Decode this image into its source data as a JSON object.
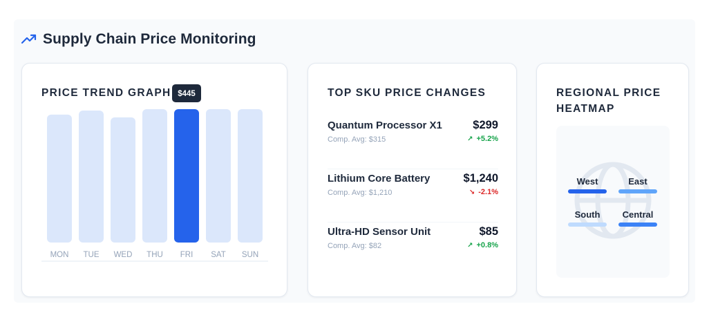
{
  "header": {
    "title": "Supply Chain Price Monitoring",
    "icon": "trending-up-icon"
  },
  "trend_card": {
    "title": "PRICE TREND GRAPH",
    "tooltip": "$445",
    "highlight_day": "FRI"
  },
  "chart_data": {
    "type": "bar",
    "categories": [
      "MON",
      "TUE",
      "WED",
      "THU",
      "FRI",
      "SAT",
      "SUN"
    ],
    "values": [
      0.93,
      0.96,
      0.91,
      0.97,
      0.97,
      0.97,
      0.97
    ],
    "ylim": [
      0,
      1
    ],
    "highlighted": "FRI",
    "highlight_label": "$445",
    "bar_color": "#dbe7fb",
    "highlight_color": "#2563eb"
  },
  "sku_card": {
    "title": "TOP SKU PRICE CHANGES",
    "items": [
      {
        "name": "Quantum Processor X1",
        "price": "$299",
        "comp": "Comp. Avg: $315",
        "change": "+5.2%",
        "direction": "up"
      },
      {
        "name": "Lithium Core Battery",
        "price": "$1,240",
        "comp": "Comp. Avg: $1,210",
        "change": "-2.1%",
        "direction": "down"
      },
      {
        "name": "Ultra-HD Sensor Unit",
        "price": "$85",
        "comp": "Comp. Avg: $82",
        "change": "+0.8%",
        "direction": "up"
      }
    ]
  },
  "heat_card": {
    "title_line1": "REGIONAL PRICE",
    "title_line2": "HEATMAP",
    "regions": [
      {
        "name": "West",
        "color": "#2563eb"
      },
      {
        "name": "East",
        "color": "#60a5fa"
      },
      {
        "name": "South",
        "color": "#bfdbfe"
      },
      {
        "name": "Central",
        "color": "#3b82f6"
      }
    ]
  },
  "colors": {
    "accent": "#2563eb",
    "up": "#16a34a",
    "down": "#dc2626"
  }
}
